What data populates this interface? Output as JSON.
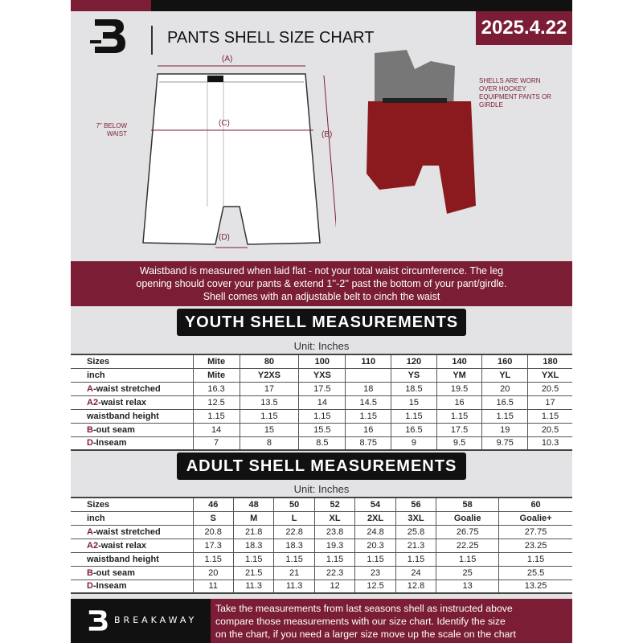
{
  "header": {
    "title": "PANTS SHELL SIZE CHART",
    "date": "2025.4.22"
  },
  "diagram": {
    "label_a": "(A)",
    "label_b": "(B)",
    "label_c": "(C)",
    "label_d": "(D)",
    "below_waist": "7\" BELOW WAIST",
    "shell_note": "SHELLS ARE WORN OVER HOCKEY EQUIPMENT PANTS OR GIRDLE"
  },
  "colors": {
    "maroon": "#7b1e35",
    "dark": "#111111",
    "background": "#e3e3e5"
  },
  "info_band": [
    "Waistband is measured when laid flat - not your total waist circumference. The leg",
    "opening should cover your pants & extend 1''-2'' past the bottom of your pant/girdle.",
    "Shell comes with an adjustable belt to cinch the waist"
  ],
  "youth": {
    "title": "YOUTH SHELL MEASUREMENTS",
    "unit": "Unit: Inches",
    "rows": [
      {
        "prefix": "",
        "label": "Sizes",
        "cells": [
          "Mite",
          "80",
          "100",
          "110",
          "120",
          "140",
          "160",
          "180"
        ]
      },
      {
        "prefix": "",
        "label": "inch",
        "cells": [
          "Mite",
          "Y2XS",
          "YXS",
          "",
          "YS",
          "YM",
          "YL",
          "YXL"
        ]
      },
      {
        "prefix": "A",
        "label": "-waist stretched",
        "cells": [
          "16.3",
          "17",
          "17.5",
          "18",
          "18.5",
          "19.5",
          "20",
          "20.5"
        ]
      },
      {
        "prefix": "A2",
        "label": "-waist relax",
        "cells": [
          "12.5",
          "13.5",
          "14",
          "14.5",
          "15",
          "16",
          "16.5",
          "17"
        ]
      },
      {
        "prefix": "",
        "label": "waistband height",
        "cells": [
          "1.15",
          "1.15",
          "1.15",
          "1.15",
          "1.15",
          "1.15",
          "1.15",
          "1.15"
        ]
      },
      {
        "prefix": "B",
        "label": "-out seam",
        "cells": [
          "14",
          "15",
          "15.5",
          "16",
          "16.5",
          "17.5",
          "19",
          "20.5"
        ]
      },
      {
        "prefix": "D",
        "label": "-Inseam",
        "cells": [
          "7",
          "8",
          "8.5",
          "8.75",
          "9",
          "9.5",
          "9.75",
          "10.3"
        ]
      }
    ]
  },
  "adult": {
    "title": "ADULT SHELL MEASUREMENTS",
    "unit": "Unit: Inches",
    "rows": [
      {
        "prefix": "",
        "label": "Sizes",
        "cells": [
          "46",
          "48",
          "50",
          "52",
          "54",
          "56",
          "58",
          "60"
        ]
      },
      {
        "prefix": "",
        "label": "inch",
        "cells": [
          "S",
          "M",
          "L",
          "XL",
          "2XL",
          "3XL",
          "Goalie",
          "Goalie+"
        ]
      },
      {
        "prefix": "A",
        "label": "-waist stretched",
        "cells": [
          "20.8",
          "21.8",
          "22.8",
          "23.8",
          "24.8",
          "25.8",
          "26.75",
          "27.75"
        ]
      },
      {
        "prefix": "A2",
        "label": "-waist relax",
        "cells": [
          "17.3",
          "18.3",
          "18.3",
          "19.3",
          "20.3",
          "21.3",
          "22.25",
          "23.25"
        ]
      },
      {
        "prefix": "",
        "label": "waistband height",
        "cells": [
          "1.15",
          "1.15",
          "1.15",
          "1.15",
          "1.15",
          "1.15",
          "1.15",
          "1.15"
        ]
      },
      {
        "prefix": "B",
        "label": "-out seam",
        "cells": [
          "20",
          "21.5",
          "21",
          "22.3",
          "23",
          "24",
          "25",
          "25.5"
        ]
      },
      {
        "prefix": "D",
        "label": "-Inseam",
        "cells": [
          "11",
          "11.3",
          "11.3",
          "12",
          "12.5",
          "12.8",
          "13",
          "13.25"
        ]
      }
    ]
  },
  "footer": {
    "brand": "BREAKAWAY",
    "logo_letter": "B",
    "text": [
      "Take the measurements from last seasons shell as instructed above",
      "compare those measurements  with our size chart. Identify the size",
      "on the chart, if you need a larger size move up the scale on the chart"
    ]
  }
}
